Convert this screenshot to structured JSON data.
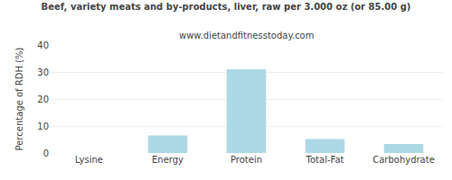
{
  "chart_data": {
    "type": "bar",
    "title": "Beef, variety meats and by-products, liver, raw per 3.000 oz (or 85.00 g)",
    "subtitle": "www.dietandfitnesstoday.com",
    "categories": [
      "Lysine",
      "Energy",
      "Protein",
      "Total-Fat",
      "Carbohydrate"
    ],
    "values": [
      0,
      6.5,
      31.0,
      5.2,
      3.3
    ],
    "color": "#add8e6",
    "ylabel": "Percentage of RDH (%)",
    "ylim": [
      0,
      40
    ],
    "yticks": [
      0,
      10,
      20,
      30,
      40
    ],
    "grid": true
  }
}
